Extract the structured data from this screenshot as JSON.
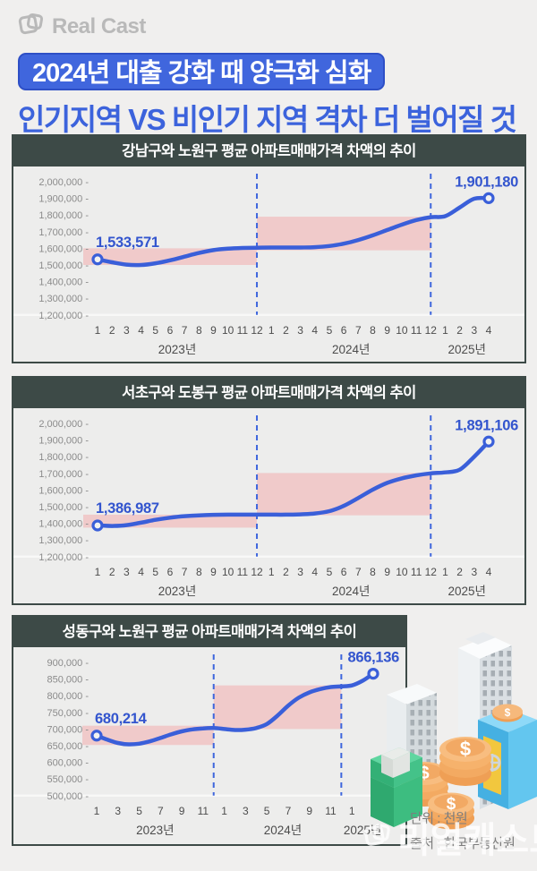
{
  "logo": {
    "text": "Real Cast"
  },
  "header": {
    "badge": "2024년 대출 강화 때 양극화 심화",
    "subtitle": "인기지역 VS 비인기 지역 격차 더 벌어질 것"
  },
  "footer": {
    "unit": "단위 : 천원",
    "source": "출처 : 한국부동산원",
    "watermark": "리얼캐스트"
  },
  "colors": {
    "accent_blue": "#3c63dc",
    "line": "#3a5fd9",
    "dashed": "#3e66dd",
    "band": "#f0caca",
    "panel_header": "#3d4a47",
    "value_label": "#3355ce"
  },
  "chart_data": [
    {
      "type": "line",
      "title": "강남구와 노원구 평균 아파트매매가격 차액의 추이",
      "ylim": [
        1200000,
        2000000
      ],
      "ytick_step": 100000,
      "start_label": "1,533,571",
      "end_label": "1,901,180",
      "values": [
        1533571,
        1516000,
        1502000,
        1500000,
        1510000,
        1528000,
        1550000,
        1572000,
        1589000,
        1598000,
        1602000,
        1604000,
        1605000,
        1605000,
        1605000,
        1607000,
        1614000,
        1628000,
        1650000,
        1678000,
        1710000,
        1742000,
        1770000,
        1787000,
        1793000,
        1845000,
        1898000,
        1901180
      ],
      "x_ticks": [
        {
          "i": 0,
          "t": "1"
        },
        {
          "i": 1,
          "t": "2"
        },
        {
          "i": 2,
          "t": "3"
        },
        {
          "i": 3,
          "t": "4"
        },
        {
          "i": 4,
          "t": "5"
        },
        {
          "i": 5,
          "t": "6"
        },
        {
          "i": 6,
          "t": "7"
        },
        {
          "i": 7,
          "t": "8"
        },
        {
          "i": 8,
          "t": "9"
        },
        {
          "i": 9,
          "t": "10"
        },
        {
          "i": 10,
          "t": "11"
        },
        {
          "i": 11,
          "t": "12"
        },
        {
          "i": 12,
          "t": "1"
        },
        {
          "i": 13,
          "t": "2"
        },
        {
          "i": 14,
          "t": "3"
        },
        {
          "i": 15,
          "t": "4"
        },
        {
          "i": 16,
          "t": "5"
        },
        {
          "i": 17,
          "t": "6"
        },
        {
          "i": 18,
          "t": "7"
        },
        {
          "i": 19,
          "t": "8"
        },
        {
          "i": 20,
          "t": "9"
        },
        {
          "i": 21,
          "t": "10"
        },
        {
          "i": 22,
          "t": "11"
        },
        {
          "i": 23,
          "t": "12"
        },
        {
          "i": 24,
          "t": "1"
        },
        {
          "i": 25,
          "t": "2"
        },
        {
          "i": 26,
          "t": "3"
        },
        {
          "i": 27,
          "t": "4"
        }
      ],
      "years": [
        {
          "i": 5.5,
          "t": "2023년"
        },
        {
          "i": 17.5,
          "t": "2024년"
        },
        {
          "i": 25.5,
          "t": "2025년"
        }
      ],
      "bands": [
        {
          "from_index": 0,
          "to_index": 11,
          "y0": 1500000,
          "y1": 1600000
        },
        {
          "from_index": 11,
          "to_index": 23,
          "y0": 1588000,
          "y1": 1790000
        }
      ],
      "dashed_at_indices": [
        11,
        23
      ]
    },
    {
      "type": "line",
      "title": "서초구와 도봉구 평균 아파트매매가격 차액의 추이",
      "ylim": [
        1200000,
        2000000
      ],
      "ytick_step": 100000,
      "start_label": "1,386,987",
      "end_label": "1,891,106",
      "values": [
        1386987,
        1384000,
        1389000,
        1404000,
        1421000,
        1434000,
        1443000,
        1448000,
        1451000,
        1452000,
        1452000,
        1452000,
        1452000,
        1452000,
        1454000,
        1459000,
        1473000,
        1505000,
        1552000,
        1602000,
        1643000,
        1670000,
        1688000,
        1700000,
        1706000,
        1722000,
        1800000,
        1891106
      ],
      "x_ticks": [
        {
          "i": 0,
          "t": "1"
        },
        {
          "i": 1,
          "t": "2"
        },
        {
          "i": 2,
          "t": "3"
        },
        {
          "i": 3,
          "t": "4"
        },
        {
          "i": 4,
          "t": "5"
        },
        {
          "i": 5,
          "t": "6"
        },
        {
          "i": 6,
          "t": "7"
        },
        {
          "i": 7,
          "t": "8"
        },
        {
          "i": 8,
          "t": "9"
        },
        {
          "i": 9,
          "t": "10"
        },
        {
          "i": 10,
          "t": "11"
        },
        {
          "i": 11,
          "t": "12"
        },
        {
          "i": 12,
          "t": "1"
        },
        {
          "i": 13,
          "t": "2"
        },
        {
          "i": 14,
          "t": "3"
        },
        {
          "i": 15,
          "t": "4"
        },
        {
          "i": 16,
          "t": "5"
        },
        {
          "i": 17,
          "t": "6"
        },
        {
          "i": 18,
          "t": "7"
        },
        {
          "i": 19,
          "t": "8"
        },
        {
          "i": 20,
          "t": "9"
        },
        {
          "i": 21,
          "t": "10"
        },
        {
          "i": 22,
          "t": "11"
        },
        {
          "i": 23,
          "t": "12"
        },
        {
          "i": 24,
          "t": "1"
        },
        {
          "i": 25,
          "t": "2"
        },
        {
          "i": 26,
          "t": "3"
        },
        {
          "i": 27,
          "t": "4"
        }
      ],
      "years": [
        {
          "i": 5.5,
          "t": "2023년"
        },
        {
          "i": 17.5,
          "t": "2024년"
        },
        {
          "i": 25.5,
          "t": "2025년"
        }
      ],
      "bands": [
        {
          "from_index": 0,
          "to_index": 11,
          "y0": 1374000,
          "y1": 1452000
        },
        {
          "from_index": 11,
          "to_index": 23,
          "y0": 1448000,
          "y1": 1702000
        }
      ],
      "dashed_at_indices": [
        11,
        23
      ]
    },
    {
      "type": "line",
      "title": "성동구와 노원구 평균 아파트매매가격 차액의 추이",
      "ylim": [
        500000,
        900000
      ],
      "ytick_step": 50000,
      "start_label": "680,214",
      "end_label": "866,136",
      "values": [
        680214,
        668000,
        658000,
        654000,
        656000,
        663000,
        673000,
        684000,
        693000,
        699000,
        702000,
        703000,
        700000,
        697000,
        698000,
        703000,
        715000,
        740000,
        770000,
        794000,
        810000,
        820000,
        826000,
        828000,
        831000,
        845000,
        866136
      ],
      "x_ticks": [
        {
          "i": 0,
          "t": "1"
        },
        {
          "i": 2,
          "t": "3"
        },
        {
          "i": 4,
          "t": "5"
        },
        {
          "i": 6,
          "t": "7"
        },
        {
          "i": 8,
          "t": "9"
        },
        {
          "i": 10,
          "t": "11"
        },
        {
          "i": 12,
          "t": "1"
        },
        {
          "i": 14,
          "t": "3"
        },
        {
          "i": 16,
          "t": "5"
        },
        {
          "i": 18,
          "t": "7"
        },
        {
          "i": 20,
          "t": "9"
        },
        {
          "i": 22,
          "t": "11"
        },
        {
          "i": 24,
          "t": "1"
        },
        {
          "i": 26,
          "t": "3"
        }
      ],
      "years": [
        {
          "i": 5.5,
          "t": "2023년"
        },
        {
          "i": 17.5,
          "t": "2024년"
        },
        {
          "i": 25,
          "t": "2025년"
        }
      ],
      "bands": [
        {
          "from_index": 0,
          "to_index": 11,
          "y0": 652000,
          "y1": 710000
        },
        {
          "from_index": 11,
          "to_index": 23,
          "y0": 700000,
          "y1": 831000
        }
      ],
      "dashed_at_indices": [
        11,
        23
      ]
    }
  ]
}
